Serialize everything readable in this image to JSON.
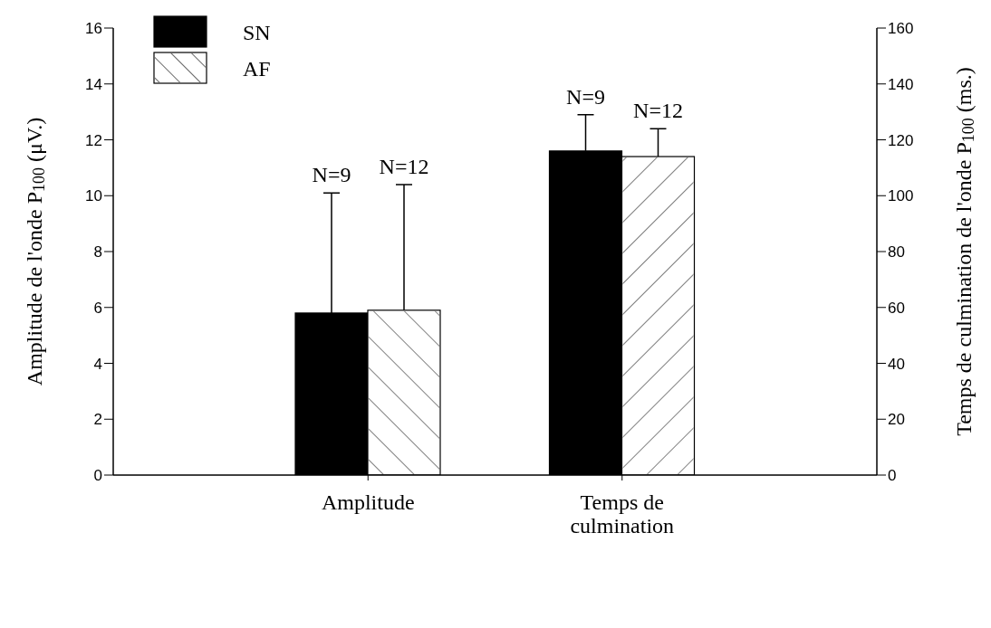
{
  "chart_data": {
    "type": "bar",
    "categories": [
      "Amplitude",
      "Temps de culmination"
    ],
    "ylabel": "Amplitude de l'onde P$_{100}$ (μV.)",
    "y2label": "Temps de culmination de l'onde P$_{100}$ (ms.)",
    "series": [
      {
        "name": "SN",
        "color": "#000000",
        "values": [
          5.8,
          null
        ],
        "errors": [
          [
            5.8,
            10.1
          ],
          null
        ]
      },
      {
        "name": "AF",
        "color": "#ffffff",
        "values": [
          5.9,
          null
        ],
        "errors": [
          [
            5.9,
            10.4
          ],
          null
        ]
      },
      {
        "color": "#000000",
        "axis": "y2",
        "values": [
          null,
          116
        ],
        "errors": [
          null,
          [
            116,
            129
          ]
        ]
      },
      {
        "color": "#ffffff",
        "axis": "y2",
        "values": [
          null,
          114
        ],
        "errors": [
          null,
          [
            114,
            124
          ]
        ]
      }
    ],
    "annotations": [
      "N=9",
      "N=12",
      "N=9",
      "N=12"
    ],
    "ylim": [
      0,
      16
    ],
    "yticks": [
      0,
      2,
      4,
      6,
      8,
      10,
      12,
      14,
      16
    ],
    "y2lim": [
      0,
      160
    ],
    "y2ticks": [
      0,
      20,
      40,
      60,
      80,
      100,
      120,
      140,
      160
    ],
    "grid": false,
    "legend": "top left"
  }
}
